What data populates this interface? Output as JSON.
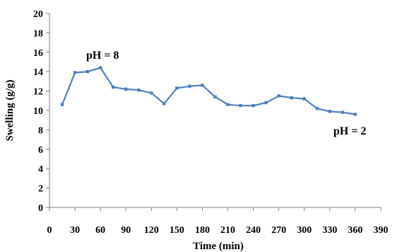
{
  "chart_data": {
    "type": "line",
    "xlabel": "Time (min)",
    "ylabel": "Swelling (g/g)",
    "xlim": [
      0,
      390
    ],
    "ylim": [
      0,
      20
    ],
    "x_ticks": [
      0,
      30,
      60,
      90,
      120,
      150,
      180,
      210,
      240,
      270,
      300,
      330,
      360,
      390
    ],
    "y_ticks": [
      0,
      2,
      4,
      6,
      8,
      10,
      12,
      14,
      16,
      18,
      20
    ],
    "x_tick_labels": [
      "0",
      "30",
      "60",
      "90",
      "120",
      "150",
      "180",
      "210",
      "240",
      "270",
      "300",
      "330",
      "360",
      "390"
    ],
    "y_tick_labels": [
      "0",
      "2",
      "4",
      "6",
      "8",
      "10",
      "12",
      "14",
      "16",
      "18",
      "20"
    ],
    "grid": false,
    "legend": "none",
    "series": [
      {
        "color": "#4f81bd",
        "x": [
          15,
          30,
          45,
          60,
          75,
          90,
          105,
          120,
          135,
          150,
          165,
          180,
          195,
          210,
          225,
          240,
          255,
          270,
          285,
          300,
          315,
          330,
          345,
          360
        ],
        "y": [
          10.6,
          13.9,
          14.0,
          14.4,
          12.4,
          12.2,
          12.1,
          11.8,
          10.7,
          12.3,
          12.5,
          12.6,
          11.4,
          10.6,
          10.5,
          10.5,
          10.8,
          11.5,
          11.3,
          11.2,
          10.2,
          9.9,
          9.8,
          9.6
        ]
      }
    ],
    "annotations": [
      {
        "text": "pH = 8"
      },
      {
        "text": "pH = 2"
      }
    ]
  }
}
